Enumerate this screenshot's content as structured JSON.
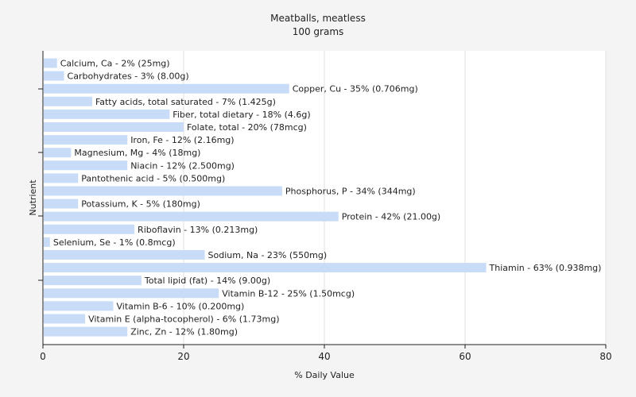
{
  "chart_data": {
    "type": "bar",
    "orientation": "horizontal",
    "title": "Meatballs, meatless",
    "subtitle": "100 grams",
    "xlabel": "% Daily Value",
    "ylabel": "Nutrient",
    "xlim": [
      0,
      80
    ],
    "xticks": [
      "0",
      "20",
      "40",
      "60",
      "80"
    ],
    "grid": true,
    "bar_color": "#c8dcf8",
    "categories": [
      "Calcium, Ca - 2% (25mg)",
      "Carbohydrates - 3% (8.00g)",
      "Copper, Cu - 35% (0.706mg)",
      "Fatty acids, total saturated - 7% (1.425g)",
      "Fiber, total dietary - 18% (4.6g)",
      "Folate, total - 20% (78mcg)",
      "Iron, Fe - 12% (2.16mg)",
      "Magnesium, Mg - 4% (18mg)",
      "Niacin - 12% (2.500mg)",
      "Pantothenic acid - 5% (0.500mg)",
      "Phosphorus, P - 34% (344mg)",
      "Potassium, K - 5% (180mg)",
      "Protein - 42% (21.00g)",
      "Riboflavin - 13% (0.213mg)",
      "Selenium, Se - 1% (0.8mcg)",
      "Sodium, Na - 23% (550mg)",
      "Thiamin - 63% (0.938mg)",
      "Total lipid (fat) - 14% (9.00g)",
      "Vitamin B-12 - 25% (1.50mcg)",
      "Vitamin B-6 - 10% (0.200mg)",
      "Vitamin E (alpha-tocopherol) - 6% (1.73mg)",
      "Zinc, Zn - 12% (1.80mg)"
    ],
    "values": [
      2,
      3,
      35,
      7,
      18,
      20,
      12,
      4,
      12,
      5,
      34,
      5,
      42,
      13,
      1,
      23,
      63,
      14,
      25,
      10,
      6,
      12
    ]
  }
}
